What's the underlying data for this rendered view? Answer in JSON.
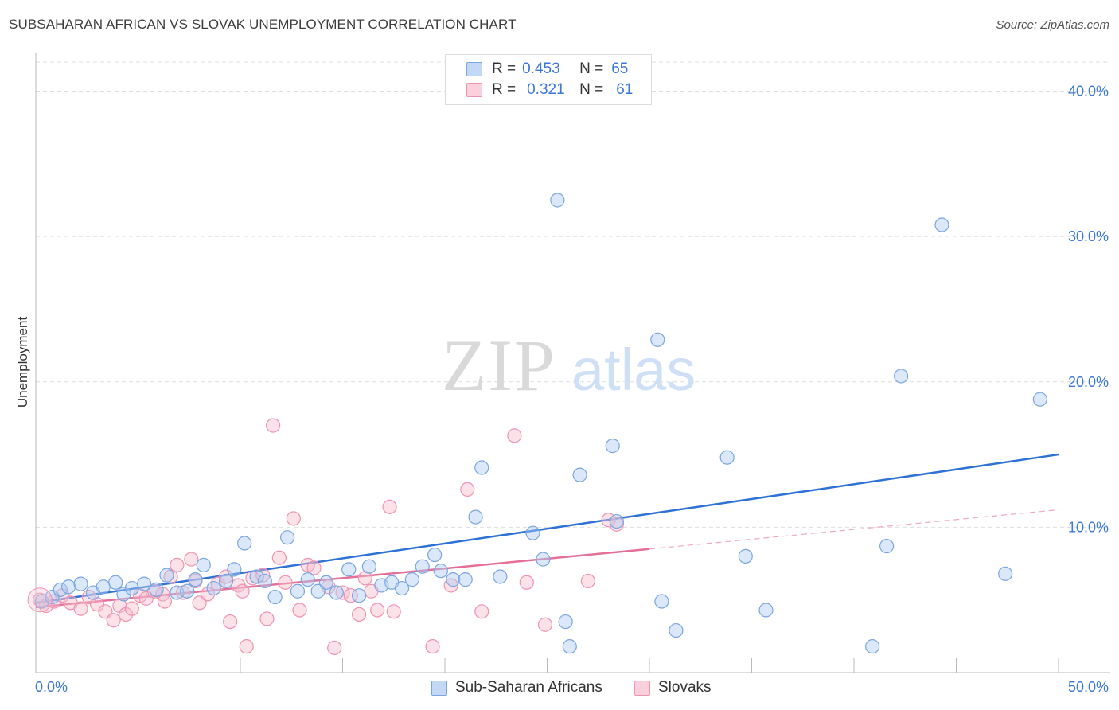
{
  "title": "SUBSAHARAN AFRICAN VS SLOVAK UNEMPLOYMENT CORRELATION CHART",
  "source": "Source: ZipAtlas.com",
  "watermark": {
    "zip": "ZIP",
    "atlas": "atlas"
  },
  "legend_top": {
    "rows": [
      {
        "r_label": "R =",
        "r_value": "0.453",
        "n_label": "N =",
        "n_value": "65"
      },
      {
        "r_label": "R =",
        "r_value": "0.321",
        "n_label": "N =",
        "n_value": "61"
      }
    ]
  },
  "colors": {
    "blue_fill": "#aecbf2",
    "blue_stroke": "#7aa6e0",
    "blue_line": "#2f72d6",
    "pink_fill": "#f7bccd",
    "pink_stroke": "#ee93b0",
    "pink_line": "#e4709a",
    "axis_text": "#3b78d8",
    "grid": "#dedede"
  },
  "chart_data": {
    "type": "scatter",
    "xlabel": "",
    "ylabel": "Unemployment",
    "xlim": [
      0,
      50
    ],
    "ylim": [
      0,
      42
    ],
    "x_tick_labels": [
      "0.0%",
      "50.0%"
    ],
    "y_ticks": [
      10,
      20,
      30,
      40
    ],
    "y_tick_labels": [
      "10.0%",
      "20.0%",
      "30.0%",
      "40.0%"
    ],
    "grid": true,
    "legend_position": "bottom",
    "series": [
      {
        "name": "Sub-Saharan Africans",
        "color": "#aecbf2",
        "R": 0.453,
        "N": 65,
        "trend": {
          "x": [
            0,
            50
          ],
          "y": [
            4.8,
            15.0
          ]
        },
        "points": [
          [
            0.3,
            4.9
          ],
          [
            0.8,
            5.2
          ],
          [
            1.2,
            5.7
          ],
          [
            1.6,
            5.9
          ],
          [
            2.2,
            6.1
          ],
          [
            2.8,
            5.5
          ],
          [
            3.3,
            5.9
          ],
          [
            3.9,
            6.2
          ],
          [
            4.3,
            5.4
          ],
          [
            4.7,
            5.8
          ],
          [
            5.3,
            6.1
          ],
          [
            5.9,
            5.7
          ],
          [
            6.4,
            6.7
          ],
          [
            6.9,
            5.5
          ],
          [
            7.4,
            5.6
          ],
          [
            7.8,
            6.4
          ],
          [
            8.2,
            7.4
          ],
          [
            8.7,
            5.8
          ],
          [
            9.3,
            6.3
          ],
          [
            9.7,
            7.1
          ],
          [
            10.2,
            8.9
          ],
          [
            10.8,
            6.6
          ],
          [
            11.2,
            6.3
          ],
          [
            11.7,
            5.2
          ],
          [
            12.3,
            9.3
          ],
          [
            12.8,
            5.6
          ],
          [
            13.3,
            6.4
          ],
          [
            13.8,
            5.6
          ],
          [
            14.2,
            6.2
          ],
          [
            14.7,
            5.5
          ],
          [
            15.3,
            7.1
          ],
          [
            15.8,
            5.3
          ],
          [
            16.3,
            7.3
          ],
          [
            16.9,
            6.0
          ],
          [
            17.4,
            6.2
          ],
          [
            17.9,
            5.8
          ],
          [
            18.4,
            6.4
          ],
          [
            18.9,
            7.3
          ],
          [
            19.5,
            8.1
          ],
          [
            19.8,
            7.0
          ],
          [
            20.4,
            6.4
          ],
          [
            21.0,
            6.4
          ],
          [
            21.5,
            10.7
          ],
          [
            21.8,
            14.1
          ],
          [
            22.7,
            6.6
          ],
          [
            24.3,
            9.6
          ],
          [
            24.8,
            7.8
          ],
          [
            25.5,
            32.5
          ],
          [
            25.9,
            3.5
          ],
          [
            26.1,
            1.8
          ],
          [
            26.6,
            13.6
          ],
          [
            28.2,
            15.6
          ],
          [
            28.4,
            10.4
          ],
          [
            30.4,
            22.9
          ],
          [
            30.6,
            4.9
          ],
          [
            31.3,
            2.9
          ],
          [
            33.8,
            14.8
          ],
          [
            34.7,
            8.0
          ],
          [
            35.7,
            4.3
          ],
          [
            40.9,
            1.8
          ],
          [
            41.6,
            8.7
          ],
          [
            42.3,
            20.4
          ],
          [
            44.3,
            30.8
          ],
          [
            47.4,
            6.8
          ],
          [
            49.1,
            18.8
          ]
        ]
      },
      {
        "name": "Slovaks",
        "color": "#f7bccd",
        "R": 0.321,
        "N": 61,
        "trend": {
          "x": [
            0,
            30
          ],
          "y": [
            4.5,
            8.5
          ]
        },
        "trend_extension": {
          "x": [
            30,
            50
          ],
          "y": [
            8.5,
            11.2
          ]
        },
        "points": [
          [
            0.2,
            5.0
          ],
          [
            0.5,
            4.6
          ],
          [
            0.9,
            4.9
          ],
          [
            1.3,
            5.3
          ],
          [
            1.7,
            4.8
          ],
          [
            2.2,
            4.4
          ],
          [
            2.6,
            5.2
          ],
          [
            3.0,
            4.7
          ],
          [
            3.4,
            4.2
          ],
          [
            3.8,
            3.6
          ],
          [
            4.1,
            4.6
          ],
          [
            4.4,
            4.0
          ],
          [
            4.7,
            4.4
          ],
          [
            5.1,
            5.3
          ],
          [
            5.4,
            5.1
          ],
          [
            5.8,
            5.6
          ],
          [
            6.2,
            5.4
          ],
          [
            6.3,
            4.9
          ],
          [
            6.6,
            6.6
          ],
          [
            6.9,
            7.4
          ],
          [
            7.2,
            5.5
          ],
          [
            7.6,
            7.8
          ],
          [
            7.8,
            6.3
          ],
          [
            8.0,
            4.8
          ],
          [
            8.4,
            5.4
          ],
          [
            8.9,
            6.1
          ],
          [
            9.3,
            6.6
          ],
          [
            9.5,
            3.5
          ],
          [
            9.9,
            6.0
          ],
          [
            10.1,
            5.6
          ],
          [
            10.3,
            1.8
          ],
          [
            10.6,
            6.5
          ],
          [
            11.1,
            6.7
          ],
          [
            11.3,
            3.7
          ],
          [
            11.6,
            17.0
          ],
          [
            11.9,
            7.9
          ],
          [
            12.2,
            6.2
          ],
          [
            12.6,
            10.6
          ],
          [
            12.9,
            4.3
          ],
          [
            13.3,
            7.4
          ],
          [
            13.6,
            7.2
          ],
          [
            14.3,
            5.9
          ],
          [
            14.6,
            1.7
          ],
          [
            15.0,
            5.5
          ],
          [
            15.4,
            5.3
          ],
          [
            15.8,
            4.0
          ],
          [
            16.1,
            6.5
          ],
          [
            16.4,
            5.6
          ],
          [
            16.7,
            4.3
          ],
          [
            17.3,
            11.4
          ],
          [
            17.5,
            4.2
          ],
          [
            19.4,
            1.8
          ],
          [
            20.3,
            6.0
          ],
          [
            21.1,
            12.6
          ],
          [
            21.8,
            4.2
          ],
          [
            23.4,
            16.3
          ],
          [
            24.0,
            6.2
          ],
          [
            24.9,
            3.3
          ],
          [
            27.0,
            6.3
          ],
          [
            28.0,
            10.5
          ],
          [
            28.4,
            10.2
          ]
        ]
      }
    ]
  }
}
